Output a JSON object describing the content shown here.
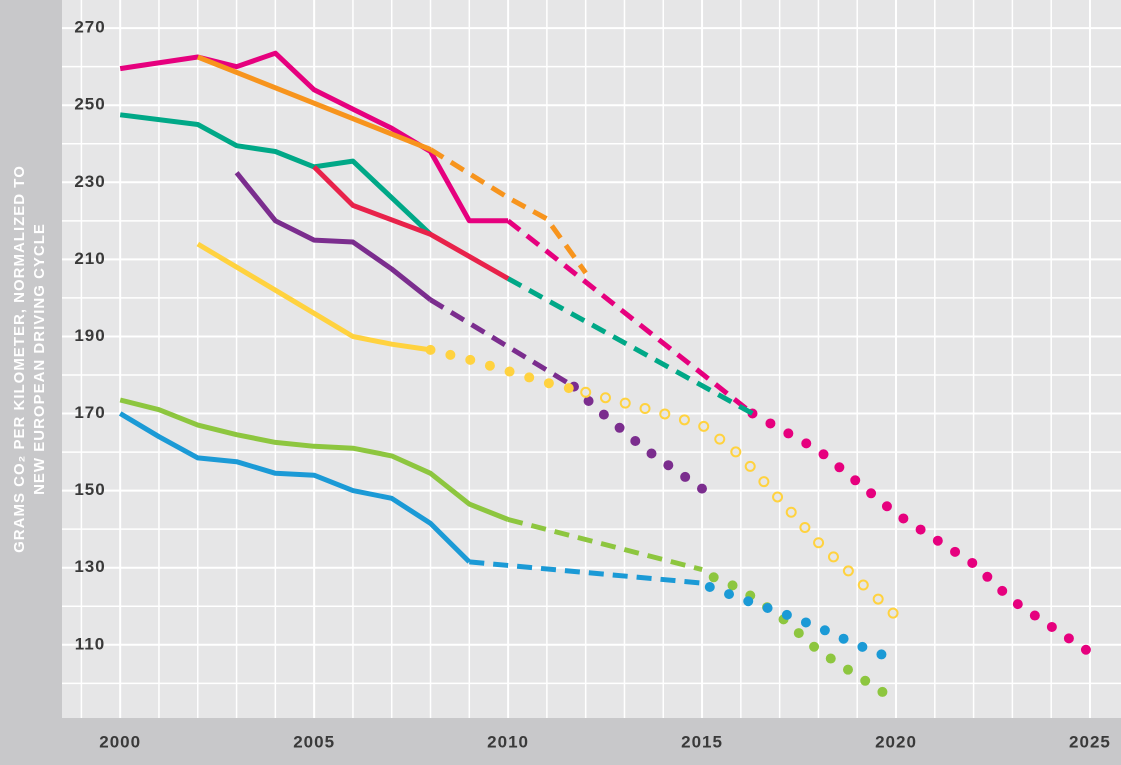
{
  "chart_data": {
    "type": "line",
    "ylabel": [
      "GRAMS CO₂ PER KILOMETER, NORMALIZED TO",
      "NEW EUROPEAN DRIVING CYCLE"
    ],
    "xlim": [
      1998.5,
      2025.8
    ],
    "xticks": [
      2000,
      2005,
      2010,
      2015,
      2020,
      2025
    ],
    "ylim": [
      91,
      277.3
    ],
    "yticks": [
      110,
      130,
      150,
      170,
      190,
      210,
      230,
      250,
      270
    ],
    "grid": true,
    "series": [
      {
        "color": "#e6007e",
        "style": "solid",
        "x": [
          2000,
          2002,
          2003,
          2004,
          2005,
          2006,
          2007,
          2008,
          2009,
          2010
        ],
        "values": [
          259.5,
          262.5,
          260,
          263.5,
          254,
          249,
          244,
          238,
          220,
          220
        ]
      },
      {
        "color": "#e6007e",
        "style": "dashed",
        "x": [
          2010,
          2016.3
        ],
        "values": [
          220,
          170
        ]
      },
      {
        "color": "#e6007e",
        "style": "dots",
        "x": [
          2016.3,
          2018,
          2020,
          2022,
          2023,
          2025
        ],
        "values": [
          170,
          160.5,
          144,
          131,
          121.5,
          108
        ]
      },
      {
        "color": "#f7941d",
        "style": "solid",
        "x": [
          2002,
          2008
        ],
        "values": [
          262.5,
          238.5
        ]
      },
      {
        "color": "#f7941d",
        "style": "dashed",
        "x": [
          2008,
          2010,
          2011,
          2012
        ],
        "values": [
          238.5,
          226,
          220.5,
          206.5
        ]
      },
      {
        "color": "#00a887",
        "style": "solid",
        "x": [
          2000,
          2002,
          2003,
          2004,
          2005,
          2006,
          2007,
          2008
        ],
        "values": [
          247.5,
          245,
          239.5,
          238,
          234,
          235.5,
          226,
          216.5
        ]
      },
      {
        "color": "#e8224a",
        "style": "solid",
        "x": [
          2005,
          2006,
          2008,
          2010
        ],
        "values": [
          234,
          224,
          216.5,
          205
        ]
      },
      {
        "color": "#00a887",
        "style": "dashed",
        "x": [
          2010,
          2016.3
        ],
        "values": [
          205,
          170
        ]
      },
      {
        "color": "#7b2d8e",
        "style": "solid",
        "x": [
          2003,
          2004,
          2005,
          2006,
          2007,
          2008
        ],
        "values": [
          232.5,
          220,
          215,
          214.5,
          207.5,
          199.5
        ]
      },
      {
        "color": "#7b2d8e",
        "style": "dashed",
        "x": [
          2008,
          2011.7
        ],
        "values": [
          199.5,
          177
        ]
      },
      {
        "color": "#7b2d8e",
        "style": "dots",
        "x": [
          2011.7,
          2012.2,
          2013.5,
          2015
        ],
        "values": [
          177,
          172,
          161,
          150.5
        ]
      },
      {
        "color": "#ffd23f",
        "style": "solid",
        "x": [
          2002,
          2004,
          2005,
          2006,
          2007,
          2008
        ],
        "values": [
          214,
          202,
          196,
          190,
          188,
          186.5
        ]
      },
      {
        "color": "#ffd23f",
        "style": "dots",
        "x": [
          2008,
          2009,
          2010,
          2011,
          2012
        ],
        "values": [
          186.5,
          184,
          181,
          178,
          175.5
        ]
      },
      {
        "color": "#ffd23f",
        "style": "rings",
        "x": [
          2012,
          2014,
          2015,
          2016,
          2018,
          2020
        ],
        "values": [
          175.5,
          170,
          167,
          159,
          136.5,
          117.5
        ]
      },
      {
        "color": "#8dc63f",
        "style": "solid",
        "x": [
          2000,
          2001,
          2002,
          2003,
          2004,
          2005,
          2006,
          2007,
          2008,
          2009,
          2010
        ],
        "values": [
          173.5,
          171,
          167,
          164.5,
          162.5,
          161.5,
          161,
          159,
          154.5,
          146.5,
          142.5
        ]
      },
      {
        "color": "#8dc63f",
        "style": "dashed",
        "x": [
          2010,
          2015
        ],
        "values": [
          142.5,
          129.5
        ]
      },
      {
        "color": "#8dc63f",
        "style": "dots",
        "x": [
          2015.3,
          2016,
          2017,
          2018,
          2019,
          2020
        ],
        "values": [
          127.5,
          124.5,
          117.5,
          108.5,
          102,
          95.5
        ]
      },
      {
        "color": "#1b9ad6",
        "style": "solid",
        "x": [
          2000,
          2001,
          2002,
          2003,
          2004,
          2005,
          2006,
          2007,
          2008,
          2009
        ],
        "values": [
          170,
          164,
          158.5,
          157.5,
          154.5,
          154,
          150,
          148,
          141.5,
          131.5
        ]
      },
      {
        "color": "#1b9ad6",
        "style": "dashed",
        "x": [
          2009,
          2015
        ],
        "values": [
          131.5,
          126
        ]
      },
      {
        "color": "#1b9ad6",
        "style": "dots",
        "x": [
          2015.2,
          2016.4,
          2017,
          2018,
          2019,
          2020
        ],
        "values": [
          125,
          120.5,
          118.5,
          114.5,
          110,
          106
        ]
      }
    ]
  }
}
